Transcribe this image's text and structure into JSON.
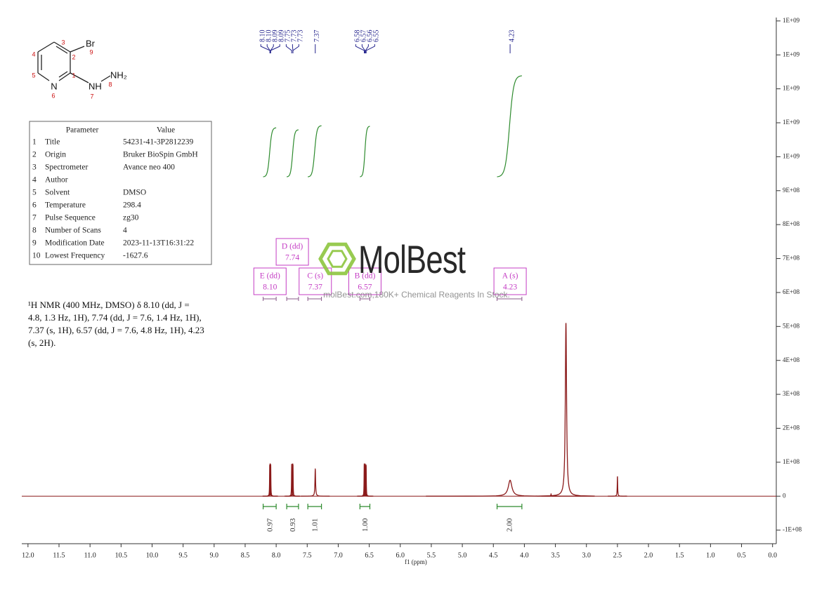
{
  "chart_data": {
    "type": "nmr",
    "xlabel": "f1 (ppm)",
    "xlim": [
      12.1,
      -0.06
    ],
    "ylim": [
      -140000000,
      1410000000
    ],
    "xticks": [
      {
        "value": 12,
        "label": "12.0"
      },
      {
        "value": 11.5,
        "label": "11.5"
      },
      {
        "value": 11,
        "label": "11.0"
      },
      {
        "value": 10.5,
        "label": "10.5"
      },
      {
        "value": 10,
        "label": "10.0"
      },
      {
        "value": 9.5,
        "label": "9.5"
      },
      {
        "value": 9,
        "label": "9.0"
      },
      {
        "value": 8.5,
        "label": "8.5"
      },
      {
        "value": 8,
        "label": "8.0"
      },
      {
        "value": 7.5,
        "label": "7.5"
      },
      {
        "value": 7,
        "label": "7.0"
      },
      {
        "value": 6.5,
        "label": "6.5"
      },
      {
        "value": 6,
        "label": "6.0"
      },
      {
        "value": 5.5,
        "label": "5.5"
      },
      {
        "value": 5,
        "label": "5.0"
      },
      {
        "value": 4.5,
        "label": "4.5"
      },
      {
        "value": 4,
        "label": "4.0"
      },
      {
        "value": 3.5,
        "label": "3.5"
      },
      {
        "value": 3,
        "label": "3.0"
      },
      {
        "value": 2.5,
        "label": "2.5"
      },
      {
        "value": 2,
        "label": "2.0"
      },
      {
        "value": 1.5,
        "label": "1.5"
      },
      {
        "value": 1,
        "label": "1.0"
      },
      {
        "value": 0.5,
        "label": "0.5"
      },
      {
        "value": 0,
        "label": "0.0"
      }
    ],
    "yticks": [
      {
        "value": -100000000,
        "label": "-1E+08"
      },
      0,
      {
        "value": 100000000,
        "label": "1E+08"
      },
      {
        "value": 200000000,
        "label": "2E+08"
      },
      {
        "value": 300000000,
        "label": "3E+08"
      },
      {
        "value": 400000000,
        "label": "4E+08"
      },
      {
        "value": 500000000,
        "label": "5E+08"
      },
      {
        "value": 600000000,
        "label": "6E+08"
      },
      {
        "value": 700000000,
        "label": "7E+08"
      },
      {
        "value": 800000000,
        "label": "8E+08"
      },
      {
        "value": 900000000,
        "label": "9E+08"
      },
      {
        "value": 1000000000,
        "label": "1E+09"
      },
      {
        "value": 1100000000,
        "label": "1E+09"
      },
      {
        "value": 1200000000,
        "label": "1E+09"
      },
      {
        "value": 1300000000,
        "label": "1E+09"
      },
      {
        "value": 1400000000,
        "label": "1E+09"
      }
    ],
    "color": "#8b1a1a",
    "x": [
      8.104,
      8.1,
      8.092,
      8.088,
      7.75,
      7.733,
      7.729,
      7.37,
      6.581,
      6.569,
      6.562,
      6.55,
      4.23,
      3.57,
      3.33,
      2.5
    ],
    "values": [
      92000000,
      94000000,
      90000000,
      92000000,
      95000000,
      96000000,
      93000000,
      80000000,
      94000000,
      92000000,
      93000000,
      90000000,
      47000000,
      7000000,
      510000000,
      58000000
    ],
    "widths": [
      0.003,
      0.003,
      0.003,
      0.003,
      0.003,
      0.003,
      0.003,
      0.006,
      0.003,
      0.003,
      0.003,
      0.003,
      0.035,
      0.004,
      0.012,
      0.004
    ],
    "peak_labels": [
      {
        "value": 8.1,
        "label": "8.10"
      },
      {
        "value": 8.1,
        "label": "8.10"
      },
      {
        "value": 8.09,
        "label": "8.09"
      },
      {
        "value": 8.09,
        "label": "8.09"
      },
      {
        "value": 7.75,
        "label": "7.75"
      },
      {
        "value": 7.73,
        "label": "7.73"
      },
      {
        "value": 7.73,
        "label": "7.73"
      },
      {
        "value": 7.37,
        "label": "7.37"
      },
      {
        "value": 6.58,
        "label": "6.58"
      },
      {
        "value": 6.57,
        "label": "6.57"
      },
      {
        "value": 6.56,
        "label": "6.56"
      },
      {
        "value": 6.55,
        "label": "6.55"
      },
      {
        "value": 4.23,
        "label": "4.23"
      }
    ],
    "peak_label_color": "#23238c",
    "integral_color": "#2e8b2e",
    "multiplet_color": "#c43cc4",
    "multiplets": [
      {
        "label": "E (dd)",
        "shift": {
          "value": 8.1,
          "label": "8.10"
        },
        "range": [
          8.21,
          8.0
        ],
        "integral": {
          "value": 0.97,
          "label": "0.97"
        }
      },
      {
        "label": "D (dd)",
        "shift": {
          "value": 7.74,
          "label": "7.74"
        },
        "range": [
          7.83,
          7.64
        ],
        "integral": {
          "value": 0.93,
          "label": "0.93"
        }
      },
      {
        "label": "C (s)",
        "shift": {
          "value": 7.37,
          "label": "7.37"
        },
        "range": [
          7.49,
          7.27
        ],
        "integral": {
          "value": 1.01,
          "label": "1.01"
        }
      },
      {
        "label": "B (dd)",
        "shift": {
          "value": 6.57,
          "label": "6.57"
        },
        "range": [
          6.65,
          6.49
        ],
        "integral": {
          "value": 1.0,
          "label": "1.00"
        }
      },
      {
        "label": "A (s)",
        "shift": {
          "value": 4.23,
          "label": "4.23"
        },
        "range": [
          4.44,
          4.04
        ],
        "integral": {
          "value": 2.0,
          "label": "2.00"
        }
      }
    ]
  },
  "structure": {
    "atoms": [
      "Br",
      "N",
      "NH",
      "NH₂"
    ],
    "locants": [
      "1",
      "2",
      "3",
      "4",
      "5",
      "6",
      "7",
      "8",
      "9"
    ]
  },
  "parameters": {
    "header": [
      "Parameter",
      "Value"
    ],
    "rows": [
      [
        "1",
        "Title",
        "54231-41-3P2812239"
      ],
      [
        "2",
        "Origin",
        "Bruker BioSpin GmbH"
      ],
      [
        "3",
        "Spectrometer",
        "Avance neo 400"
      ],
      [
        "4",
        "Author",
        ""
      ],
      [
        "5",
        "Solvent",
        "DMSO"
      ],
      [
        "6",
        "Temperature",
        "298.4"
      ],
      [
        "7",
        "Pulse Sequence",
        "zg30"
      ],
      [
        "8",
        "Number of Scans",
        "4"
      ],
      [
        "9",
        "Modification Date",
        "2023-11-13T16:31:22"
      ],
      [
        "10",
        "Lowest Frequency",
        "-1627.6"
      ]
    ]
  },
  "description": "¹H NMR (400 MHz, DMSO) δ 8.10 (dd, J = 4.8, 1.3 Hz, 1H), 7.74 (dd, J = 7.6, 1.4 Hz, 1H), 7.37 (s, 1H), 6.57 (dd, J = 7.6, 4.8 Hz, 1H), 4.23 (s, 2H).",
  "watermark": {
    "brand": "MolBest",
    "tagline": "molBest.com,180K+ Chemical Reagents In Stock."
  }
}
